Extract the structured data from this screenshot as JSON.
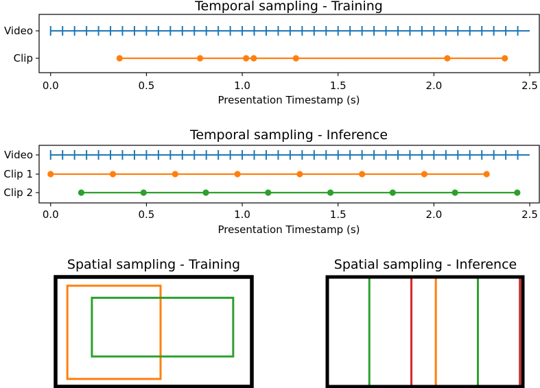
{
  "colors": {
    "video": "#1f77b4",
    "orange": "#ff7f0e",
    "green": "#2ca02c",
    "red": "#d62728",
    "black": "#000000"
  },
  "chart_data": [
    {
      "type": "scatter",
      "title": "Temporal sampling - Training",
      "xlabel": "Presentation Timestamp (s)",
      "ylabel": "",
      "xlim": [
        -0.06,
        2.55
      ],
      "xticks": [
        "0.0",
        "0.5",
        "1.0",
        "1.5",
        "2.0",
        "2.5"
      ],
      "xtick_values": [
        0,
        0.5,
        1.0,
        1.5,
        2.0,
        2.5
      ],
      "rows": [
        "Video",
        "Clip"
      ],
      "video": {
        "start": 0.0,
        "end": 2.5,
        "frame_interval": 0.0625
      },
      "series": [
        {
          "row": "Clip",
          "color": "orange",
          "x": [
            0.36,
            0.78,
            1.02,
            1.06,
            1.28,
            2.07,
            2.37
          ]
        }
      ]
    },
    {
      "type": "scatter",
      "title": "Temporal sampling - Inference",
      "xlabel": "Presentation Timestamp (s)",
      "ylabel": "",
      "xlim": [
        -0.06,
        2.55
      ],
      "xticks": [
        "0.0",
        "0.5",
        "1.0",
        "1.5",
        "2.0",
        "2.5"
      ],
      "xtick_values": [
        0,
        0.5,
        1.0,
        1.5,
        2.0,
        2.5
      ],
      "rows": [
        "Video",
        "Clip 1",
        "Clip 2"
      ],
      "video": {
        "start": 0.0,
        "end": 2.5,
        "frame_interval": 0.0625
      },
      "series": [
        {
          "row": "Clip 1",
          "color": "orange",
          "x": [
            0.0,
            0.325,
            0.65,
            0.975,
            1.3,
            1.625,
            1.95,
            2.275
          ]
        },
        {
          "row": "Clip 2",
          "color": "green",
          "x": [
            0.16,
            0.485,
            0.81,
            1.135,
            1.46,
            1.785,
            2.11,
            2.435
          ]
        }
      ]
    },
    {
      "type": "diagram",
      "title": "Spatial sampling - Training",
      "frame": {
        "width": 1.0,
        "height": 1.0,
        "color": "black"
      },
      "crops": [
        {
          "color": "orange",
          "x0": 0.06,
          "y0": 0.08,
          "x1": 0.535,
          "y1": 0.93
        },
        {
          "color": "green",
          "x0": 0.185,
          "y0": 0.19,
          "x1": 0.905,
          "y1": 0.725
        }
      ]
    },
    {
      "type": "diagram",
      "title": "Spatial sampling - Inference",
      "frame": {
        "width": 1.0,
        "height": 1.0,
        "color": "black"
      },
      "crops": [
        {
          "color": "orange",
          "x0": 0.0,
          "y0": 0.0,
          "x1": 0.555,
          "y1": 1.0
        },
        {
          "color": "green",
          "x0": 0.215,
          "y0": 0.0,
          "x1": 0.77,
          "y1": 1.0
        },
        {
          "color": "red",
          "x0": 0.43,
          "y0": 0.0,
          "x1": 0.985,
          "y1": 1.0
        }
      ]
    }
  ]
}
